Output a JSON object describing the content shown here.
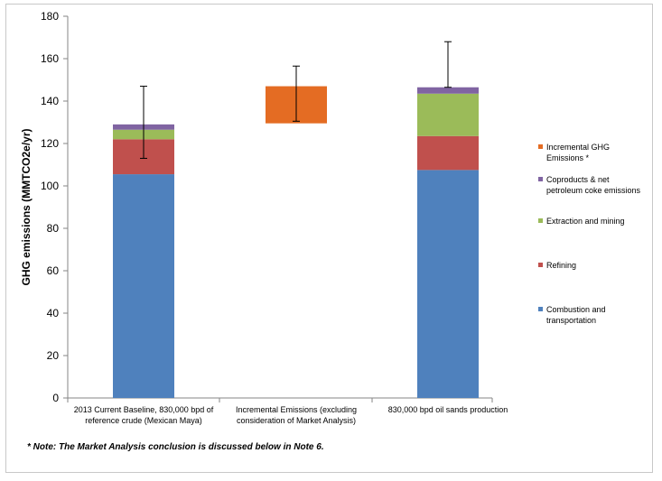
{
  "chart_data": {
    "type": "bar",
    "stacked": true,
    "title": "",
    "xlabel": "",
    "ylabel": "GHG emissions (MMTCO2e/yr)",
    "ylim": [
      0,
      180
    ],
    "yticks": [
      0,
      20,
      40,
      60,
      80,
      100,
      120,
      140,
      160,
      180
    ],
    "grid": false,
    "legend_position": "right",
    "categories": [
      {
        "label": [
          "2013 Current Baseline, 830,000 bpd of",
          "reference crude (Mexican Maya)"
        ]
      },
      {
        "label": [
          "Incremental Emissions (excluding",
          "consideration of Market Analysis)"
        ]
      },
      {
        "label": [
          "830,000 bpd oil sands production"
        ]
      }
    ],
    "series": [
      {
        "name": "Combustion and transportation",
        "legend": [
          "Combustion and",
          "transportation"
        ],
        "color": "#4f81bd",
        "values": [
          105.5,
          0,
          107.5
        ]
      },
      {
        "name": "Refining",
        "legend": [
          "Refining"
        ],
        "color": "#c0504d",
        "values": [
          16.5,
          0,
          16
        ]
      },
      {
        "name": "Extraction and mining",
        "legend": [
          "Extraction and mining"
        ],
        "color": "#9bbb59",
        "values": [
          4.5,
          0,
          20
        ]
      },
      {
        "name": "Coproducts & net petroleum coke emissions",
        "legend": [
          "Coproducts & net",
          "petroleum coke emissions"
        ],
        "color": "#8064a2",
        "values": [
          2.5,
          0,
          3
        ]
      },
      {
        "name": "Incremental GHG Emissions *",
        "legend": [
          "Incremental GHG",
          "Emissions *"
        ],
        "color": "#e46c23",
        "values": [
          0,
          17.5,
          0
        ],
        "base": [
          0,
          129.5,
          0
        ]
      }
    ],
    "error_bars": [
      {
        "center": 129.0,
        "low": 113.0,
        "high": 147.0
      },
      {
        "center": 147.0,
        "low": 130.5,
        "high": 156.5
      },
      {
        "center": 146.5,
        "low": 146.5,
        "high": 168.0
      }
    ]
  },
  "note": "* Note: The Market Analysis conclusion is discussed below in Note 6."
}
